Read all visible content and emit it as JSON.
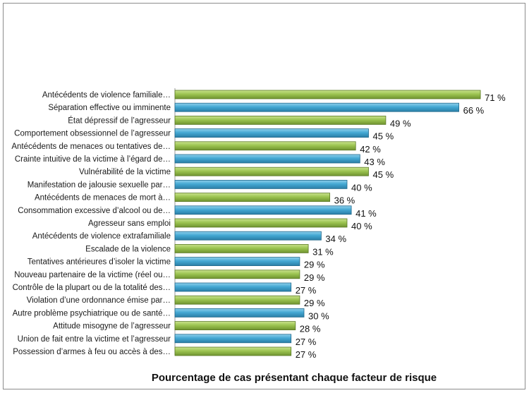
{
  "chart_data": {
    "type": "bar",
    "orientation": "horizontal",
    "title": "",
    "xlabel": "Pourcentage de cas présentant chaque facteur de risque",
    "ylabel": "",
    "xlim": [
      0,
      80
    ],
    "grid": false,
    "legend": "none",
    "value_suffix": " %",
    "colors": {
      "green": "#8db543",
      "blue": "#3a9ec9"
    },
    "categories": [
      "Antécédents de violence familiale…",
      "Séparation effective ou imminente",
      "État dépressif de l’agresseur",
      "Comportement obsessionnel de l’agresseur",
      "Antécédents de menaces ou tentatives de…",
      "Crainte intuitive de la victime à l’égard de…",
      "Vulnérabilité de la victime",
      "Manifestation de jalousie sexuelle par…",
      "Antécédents de menaces de mort à…",
      "Consommation excessive d’alcool ou de…",
      "Agresseur sans emploi",
      "Antécédents de violence extrafamiliale",
      "Escalade de la violence",
      "Tentatives antérieures d’isoler la victime",
      "Nouveau partenaire de la victime (réel ou…",
      "Contrôle de la plupart ou de la totalité des…",
      "Violation d’une ordonnance émise par…",
      "Autre problème psychiatrique ou de santé…",
      "Attitude misogyne de l’agresseur",
      "Union de fait entre la victime et l’agresseur",
      "Possession d’armes à feu ou accès à des…"
    ],
    "values": [
      71,
      66,
      49,
      45,
      42,
      43,
      45,
      40,
      36,
      41,
      40,
      34,
      31,
      29,
      29,
      27,
      29,
      30,
      28,
      27,
      27
    ],
    "bar_colors": [
      "green",
      "blue",
      "green",
      "blue",
      "green",
      "blue",
      "green",
      "blue",
      "green",
      "blue",
      "green",
      "blue",
      "green",
      "blue",
      "green",
      "blue",
      "green",
      "blue",
      "green",
      "blue",
      "green"
    ]
  }
}
